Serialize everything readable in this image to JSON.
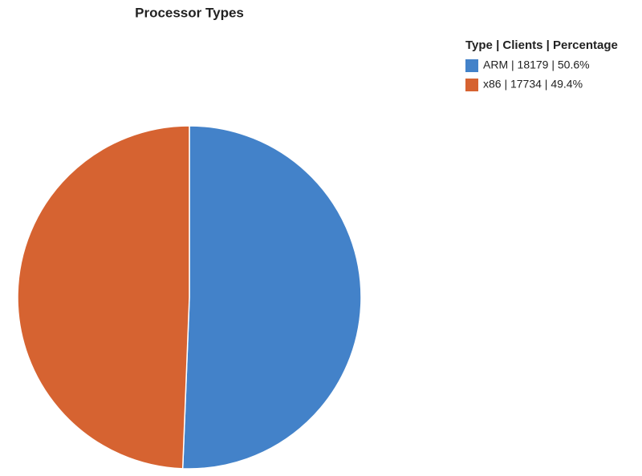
{
  "chart_data": {
    "type": "pie",
    "title": "Processor Types",
    "legend_title": "Type | Clients | Percentage",
    "categories": [
      "ARM | 18179 | 50.6%",
      "x86 | 17734 | 49.4%"
    ],
    "values": [
      18179,
      17734
    ],
    "colors": [
      "#4382c9",
      "#d66331"
    ],
    "legend": "top-right"
  }
}
